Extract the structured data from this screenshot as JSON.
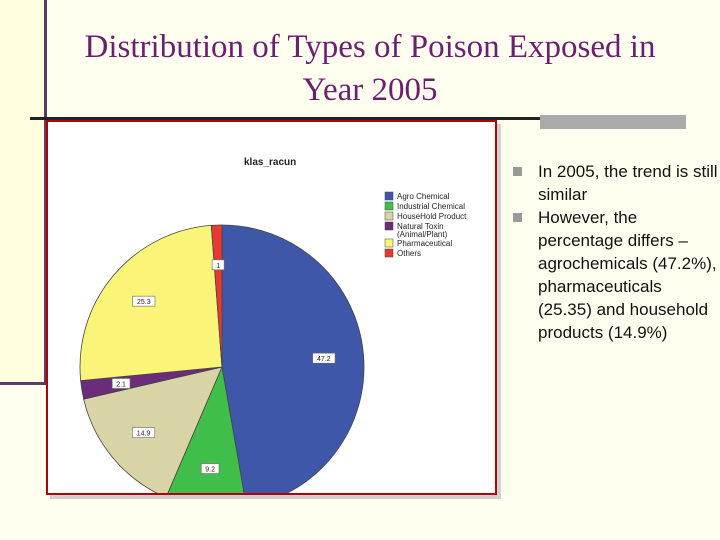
{
  "slide": {
    "title": "Distribution of Types of Poison Exposed in Year 2005",
    "bullets": [
      "In 2005, the trend is still similar",
      "However, the percentage differs – agrochemicals (47.2%), pharmaceuticals (25.35) and household products (14.9%)"
    ]
  },
  "chart_data": {
    "type": "pie",
    "title": "klas_racun",
    "legend_position": "right",
    "slices": [
      {
        "label": "Agro Chemical",
        "value": 47.2,
        "data_label": "47.2",
        "color": "#3f57a8"
      },
      {
        "label": "Industrial Chemical",
        "value": 9.2,
        "data_label": "9.2",
        "color": "#3fbf4a"
      },
      {
        "label": "HouseHold Product",
        "value": 14.9,
        "data_label": "14.9",
        "color": "#d9d4a6"
      },
      {
        "label": "Natural Toxin (Animal/Plant)",
        "value": 2.1,
        "data_label": "2.1",
        "color": "#6b2d7a"
      },
      {
        "label": "Pharmaceutical",
        "value": 25.3,
        "data_label": "25.3",
        "color": "#faf578"
      },
      {
        "label": "Others",
        "value": 1.2,
        "data_label": "1",
        "color": "#e83a33"
      }
    ]
  }
}
